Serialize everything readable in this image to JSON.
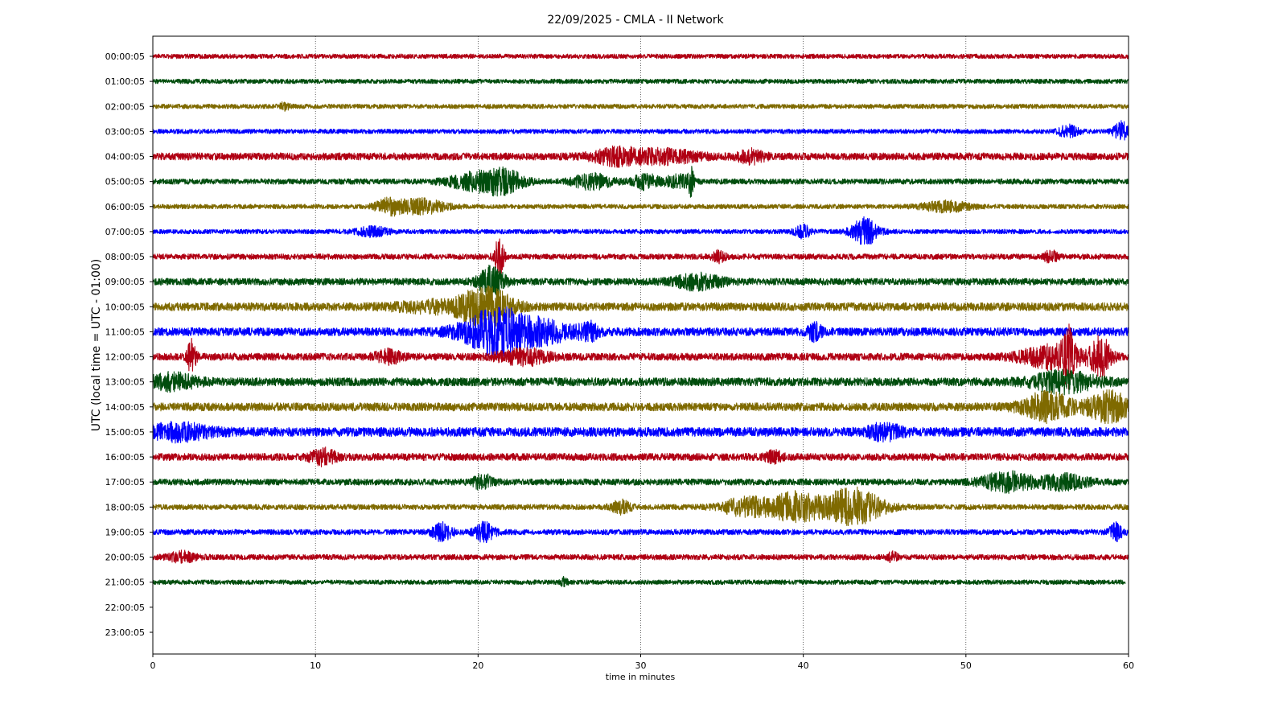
{
  "chart_data": {
    "type": "line",
    "title": "22/09/2025 - CMLA - II Network",
    "xlabel": "time in minutes",
    "ylabel": "UTC (local time = UTC - 01:00)",
    "xlim": [
      0,
      60
    ],
    "x_ticks": [
      0,
      10,
      20,
      30,
      40,
      50,
      60
    ],
    "vertical_grid_at": [
      10,
      20,
      30,
      40,
      50
    ],
    "row_labels": [
      "00:00:05",
      "01:00:05",
      "02:00:05",
      "03:00:05",
      "04:00:05",
      "05:00:05",
      "06:00:05",
      "07:00:05",
      "08:00:05",
      "09:00:05",
      "10:00:05",
      "11:00:05",
      "12:00:05",
      "13:00:05",
      "14:00:05",
      "15:00:05",
      "16:00:05",
      "17:00:05",
      "18:00:05",
      "19:00:05",
      "20:00:05",
      "21:00:05",
      "22:00:05",
      "23:00:05"
    ],
    "color_cycle": [
      "#b00013",
      "#004d0d",
      "#7f6a00",
      "#0000ff"
    ],
    "traces": [
      {
        "label": "00:00:05",
        "color": "#b00013",
        "noise": 1.0,
        "end_min": 60,
        "events": []
      },
      {
        "label": "01:00:05",
        "color": "#004d0d",
        "noise": 1.0,
        "end_min": 60,
        "events": []
      },
      {
        "label": "02:00:05",
        "color": "#7f6a00",
        "noise": 1.0,
        "end_min": 60,
        "events": [
          {
            "t": 8.1,
            "amp": 1.5,
            "dur": 0.3
          }
        ]
      },
      {
        "label": "03:00:05",
        "color": "#0000ff",
        "noise": 1.0,
        "end_min": 60,
        "events": [
          {
            "t": 56.3,
            "amp": 2.5,
            "dur": 0.6
          },
          {
            "t": 59.6,
            "amp": 4,
            "dur": 0.5
          }
        ]
      },
      {
        "label": "04:00:05",
        "color": "#b00013",
        "noise": 1.6,
        "end_min": 60,
        "events": [
          {
            "t": 28.5,
            "amp": 3,
            "dur": 1.5
          },
          {
            "t": 31.5,
            "amp": 2.5,
            "dur": 2
          },
          {
            "t": 36.8,
            "amp": 2.5,
            "dur": 0.8
          }
        ]
      },
      {
        "label": "05:00:05",
        "color": "#004d0d",
        "noise": 1.2,
        "end_min": 60,
        "events": [
          {
            "t": 19.5,
            "amp": 3,
            "dur": 1.5
          },
          {
            "t": 21.5,
            "amp": 5,
            "dur": 1.3
          },
          {
            "t": 27,
            "amp": 3,
            "dur": 1.2
          },
          {
            "t": 30.3,
            "amp": 3,
            "dur": 0.8
          },
          {
            "t": 32.3,
            "amp": 2.5,
            "dur": 0.8
          },
          {
            "t": 33.1,
            "amp": 6,
            "dur": 0.15
          }
        ]
      },
      {
        "label": "06:00:05",
        "color": "#7f6a00",
        "noise": 1.0,
        "end_min": 60,
        "events": [
          {
            "t": 14.5,
            "amp": 3,
            "dur": 0.8
          },
          {
            "t": 16.5,
            "amp": 3,
            "dur": 1.5
          },
          {
            "t": 48.8,
            "amp": 2,
            "dur": 1.5
          }
        ]
      },
      {
        "label": "07:00:05",
        "color": "#0000ff",
        "noise": 1.0,
        "end_min": 60,
        "events": [
          {
            "t": 13.5,
            "amp": 1.8,
            "dur": 1
          },
          {
            "t": 40,
            "amp": 2.5,
            "dur": 0.5
          },
          {
            "t": 43.8,
            "amp": 6,
            "dur": 0.8
          }
        ]
      },
      {
        "label": "08:00:05",
        "color": "#b00013",
        "noise": 1.2,
        "end_min": 60,
        "events": [
          {
            "t": 21.3,
            "amp": 8,
            "dur": 0.3
          },
          {
            "t": 34.8,
            "amp": 2,
            "dur": 0.4
          },
          {
            "t": 55.2,
            "amp": 2.5,
            "dur": 0.4
          }
        ]
      },
      {
        "label": "09:00:05",
        "color": "#004d0d",
        "noise": 1.5,
        "end_min": 60,
        "events": [
          {
            "t": 20.8,
            "amp": 6,
            "dur": 0.8
          },
          {
            "t": 33.5,
            "amp": 3,
            "dur": 1.5
          }
        ]
      },
      {
        "label": "10:00:05",
        "color": "#7f6a00",
        "noise": 1.8,
        "end_min": 60,
        "events": [
          {
            "t": 17.5,
            "amp": 2,
            "dur": 2.5
          },
          {
            "t": 20.5,
            "amp": 8,
            "dur": 1.5
          }
        ]
      },
      {
        "label": "11:00:05",
        "color": "#0000ff",
        "noise": 1.8,
        "end_min": 60,
        "events": [
          {
            "t": 21.3,
            "amp": 10,
            "dur": 2.2
          },
          {
            "t": 24.5,
            "amp": 3,
            "dur": 1.5
          },
          {
            "t": 26.8,
            "amp": 3.5,
            "dur": 0.6
          },
          {
            "t": 40.7,
            "amp": 3.5,
            "dur": 0.4
          }
        ]
      },
      {
        "label": "12:00:05",
        "color": "#b00013",
        "noise": 1.6,
        "end_min": 60,
        "events": [
          {
            "t": 2.4,
            "amp": 8,
            "dur": 0.25
          },
          {
            "t": 14.5,
            "amp": 2.5,
            "dur": 0.8
          },
          {
            "t": 22.8,
            "amp": 3,
            "dur": 1.5
          },
          {
            "t": 55.5,
            "amp": 5,
            "dur": 2
          },
          {
            "t": 56.3,
            "amp": 10,
            "dur": 0.3
          },
          {
            "t": 58.3,
            "amp": 8,
            "dur": 0.6
          }
        ]
      },
      {
        "label": "13:00:05",
        "color": "#004d0d",
        "noise": 1.8,
        "end_min": 60,
        "events": [
          {
            "t": 1.2,
            "amp": 3,
            "dur": 1.5
          },
          {
            "t": 56,
            "amp": 4,
            "dur": 2
          }
        ]
      },
      {
        "label": "14:00:05",
        "color": "#7f6a00",
        "noise": 1.8,
        "end_min": 60,
        "events": [
          {
            "t": 55,
            "amp": 6,
            "dur": 1.5
          },
          {
            "t": 58.8,
            "amp": 6,
            "dur": 1.3
          }
        ]
      },
      {
        "label": "15:00:05",
        "color": "#0000ff",
        "noise": 2.0,
        "end_min": 60,
        "events": [
          {
            "t": 1.5,
            "amp": 3,
            "dur": 2
          },
          {
            "t": 45,
            "amp": 3,
            "dur": 1
          }
        ]
      },
      {
        "label": "16:00:05",
        "color": "#b00013",
        "noise": 1.6,
        "end_min": 60,
        "events": [
          {
            "t": 10.5,
            "amp": 3,
            "dur": 0.8
          },
          {
            "t": 38.2,
            "amp": 2,
            "dur": 0.5
          }
        ]
      },
      {
        "label": "17:00:05",
        "color": "#004d0d",
        "noise": 1.4,
        "end_min": 60,
        "events": [
          {
            "t": 20.3,
            "amp": 3,
            "dur": 0.6
          },
          {
            "t": 52.5,
            "amp": 4,
            "dur": 1.5
          },
          {
            "t": 56,
            "amp": 3,
            "dur": 1.5
          }
        ]
      },
      {
        "label": "18:00:05",
        "color": "#7f6a00",
        "noise": 1.2,
        "end_min": 60,
        "events": [
          {
            "t": 28.8,
            "amp": 2.5,
            "dur": 0.6
          },
          {
            "t": 36.5,
            "amp": 4,
            "dur": 1.5
          },
          {
            "t": 39.5,
            "amp": 6,
            "dur": 1.5
          },
          {
            "t": 43,
            "amp": 8,
            "dur": 1.8
          }
        ]
      },
      {
        "label": "19:00:05",
        "color": "#0000ff",
        "noise": 1.2,
        "end_min": 60,
        "events": [
          {
            "t": 17.8,
            "amp": 3.5,
            "dur": 0.6
          },
          {
            "t": 20.4,
            "amp": 4,
            "dur": 0.6
          },
          {
            "t": 59.2,
            "amp": 3.5,
            "dur": 0.4
          }
        ]
      },
      {
        "label": "20:00:05",
        "color": "#b00013",
        "noise": 1.2,
        "end_min": 60,
        "events": [
          {
            "t": 1.8,
            "amp": 2,
            "dur": 0.8
          },
          {
            "t": 45.5,
            "amp": 1.8,
            "dur": 0.3
          }
        ]
      },
      {
        "label": "21:00:05",
        "color": "#004d0d",
        "noise": 1.0,
        "end_min": 59.8,
        "events": [
          {
            "t": 25.3,
            "amp": 2,
            "dur": 0.2
          }
        ]
      }
    ]
  }
}
